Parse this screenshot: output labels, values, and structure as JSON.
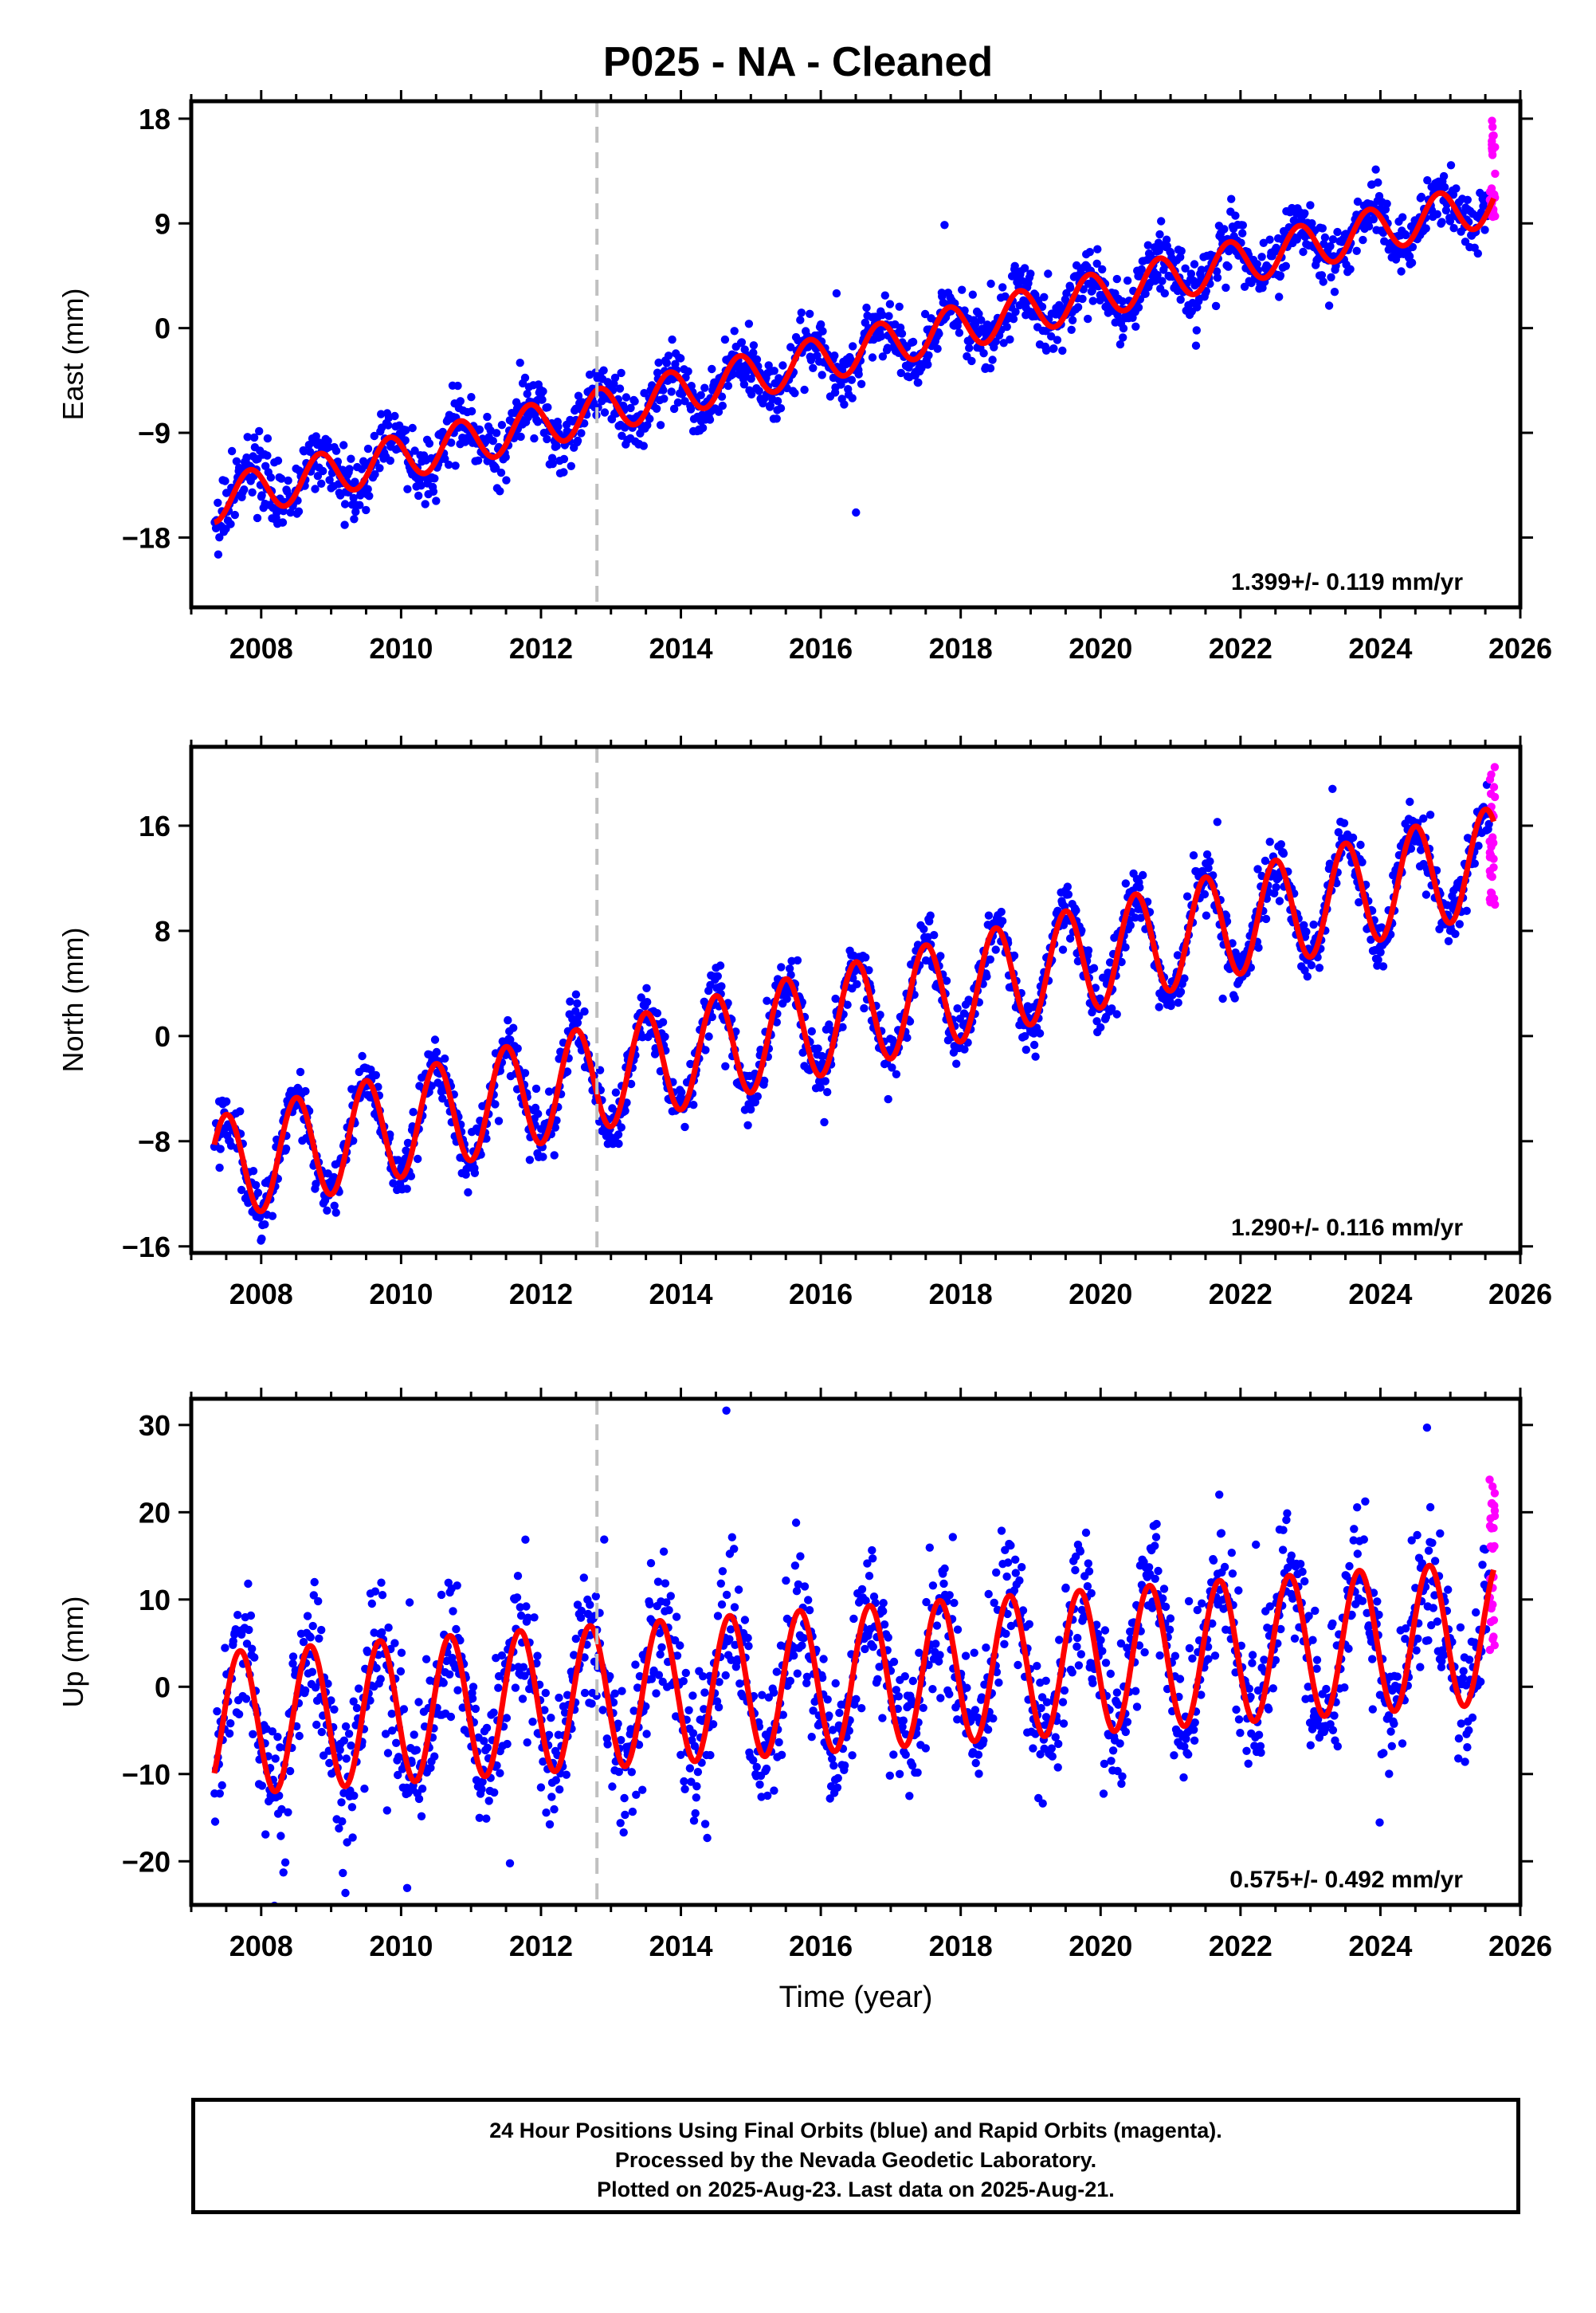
{
  "title": "P025  - NA - Cleaned",
  "footer": {
    "line1": "24 Hour Positions Using Final Orbits (blue) and Rapid Orbits (magenta).",
    "line2": "Processed by the Nevada Geodetic Laboratory.",
    "line3": "Plotted on 2025-Aug-23. Last data on 2025-Aug-21."
  },
  "colors": {
    "final_orbits": "#0000ff",
    "rapid_orbits": "#ff00ff",
    "model_fit": "#ff0000",
    "event_line": "#c0c0c0"
  },
  "chart_data": [
    {
      "type": "scatter",
      "ylabel": "East (mm)",
      "xlim": [
        2007.0,
        2026.0
      ],
      "ylim": [
        -24.0,
        19.5
      ],
      "yticks": [
        -18,
        -9,
        0,
        9,
        18
      ],
      "xticks": [
        2008,
        2010,
        2012,
        2014,
        2016,
        2018,
        2020,
        2022,
        2024,
        2026
      ],
      "rate_label": "1.399+/- 0.119 mm/yr",
      "vertical_dashed_line_x": 2012.8,
      "model": {
        "start": 2007.33,
        "end": 2025.62,
        "intercept": -14.8,
        "trend": 1.399,
        "amplitude": 1.9,
        "phase_peak": 2007.84
      },
      "series": [
        {
          "name": "Final Orbits (blue)",
          "x_range": [
            2007.33,
            2025.56
          ],
          "noise_sd": 1.3
        },
        {
          "name": "Rapid Orbits (magenta)",
          "x_range": [
            2025.56,
            2025.64
          ],
          "y_range": [
            9.5,
            18.5
          ]
        }
      ]
    },
    {
      "type": "scatter",
      "ylabel": "North (mm)",
      "xlim": [
        2007.0,
        2026.0
      ],
      "ylim": [
        -16.5,
        22.0
      ],
      "yticks": [
        -16,
        -8,
        0,
        8,
        16
      ],
      "xticks": [
        2008,
        2010,
        2012,
        2014,
        2016,
        2018,
        2020,
        2022,
        2024,
        2026
      ],
      "rate_label": "1.290+/- 0.116 mm/yr",
      "vertical_dashed_line_x": 2012.8,
      "model": {
        "start": 2007.33,
        "end": 2025.62,
        "intercept": -10.2,
        "trend": 1.29,
        "amplitude": 4.0,
        "phase_peak": 2007.5
      },
      "series": [
        {
          "name": "Final Orbits (blue)",
          "x_range": [
            2007.33,
            2025.56
          ],
          "noise_sd": 1.1
        },
        {
          "name": "Rapid Orbits (magenta)",
          "x_range": [
            2025.56,
            2025.64
          ],
          "y_range": [
            10.0,
            21.0
          ]
        }
      ]
    },
    {
      "type": "scatter",
      "ylabel": "Up (mm)",
      "xlabel": "Time (year)",
      "xlim": [
        2007.0,
        2026.0
      ],
      "ylim": [
        -25.0,
        33.0
      ],
      "yticks": [
        -20,
        -10,
        0,
        10,
        20,
        30
      ],
      "xticks": [
        2008,
        2010,
        2012,
        2014,
        2016,
        2018,
        2020,
        2022,
        2024,
        2026
      ],
      "rate_label": "0.575+/- 0.492 mm/yr",
      "vertical_dashed_line_x": 2012.8,
      "model": {
        "start": 2007.33,
        "end": 2025.62,
        "intercept": -4.3,
        "trend": 0.575,
        "amplitude": 8.2,
        "phase_peak": 2007.7
      },
      "series": [
        {
          "name": "Final Orbits (blue)",
          "x_range": [
            2007.33,
            2025.56
          ],
          "noise_sd": 4.0
        },
        {
          "name": "Rapid Orbits (magenta)",
          "x_range": [
            2025.56,
            2025.64
          ],
          "y_range": [
            4.0,
            24.0
          ]
        }
      ]
    }
  ]
}
